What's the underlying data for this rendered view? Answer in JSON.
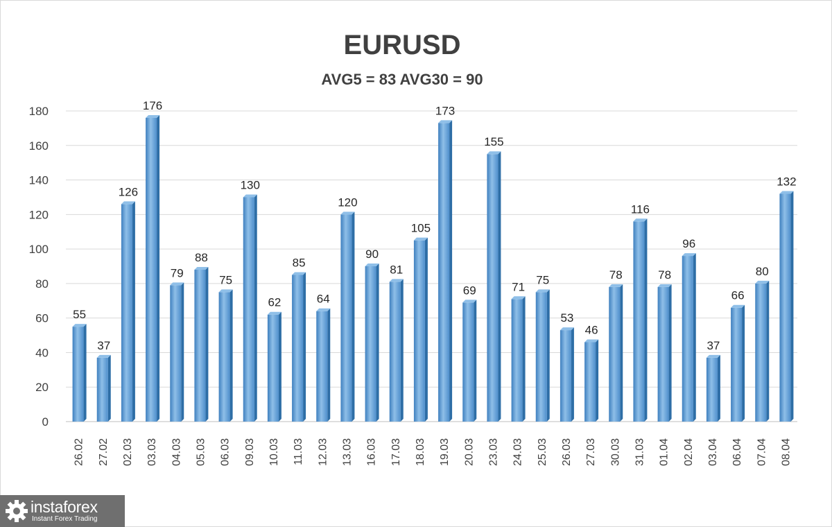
{
  "chart_data": {
    "type": "bar",
    "title": "EURUSD",
    "subtitle": "AVG5 = 83 AVG30 = 90",
    "xlabel": "",
    "ylabel": "",
    "ylim": [
      0,
      180
    ],
    "yticks": [
      0,
      20,
      40,
      60,
      80,
      100,
      120,
      140,
      160,
      180
    ],
    "grid": true,
    "legend": "none",
    "categories": [
      "26.02",
      "27.02",
      "02.03",
      "03.03",
      "04.03",
      "05.03",
      "06.03",
      "09.03",
      "10.03",
      "11.03",
      "12.03",
      "13.03",
      "16.03",
      "17.03",
      "18.03",
      "19.03",
      "20.03",
      "23.03",
      "24.03",
      "25.03",
      "26.03",
      "27.03",
      "30.03",
      "31.03",
      "01.04",
      "02.04",
      "03.04",
      "06.04",
      "07.04",
      "08.04"
    ],
    "values": [
      55,
      37,
      126,
      176,
      79,
      88,
      75,
      130,
      62,
      85,
      64,
      120,
      90,
      81,
      105,
      173,
      69,
      155,
      71,
      75,
      53,
      46,
      78,
      116,
      78,
      96,
      37,
      66,
      80,
      132
    ],
    "colors": {
      "bar": "#5b9bd5",
      "bar_light": "#8fbfe8",
      "bar_dark": "#2e6ea6",
      "grid": "#d9d9d9",
      "text": "#404040"
    }
  },
  "branding": {
    "name": "instaforex",
    "tagline": "Instant Forex Trading"
  }
}
